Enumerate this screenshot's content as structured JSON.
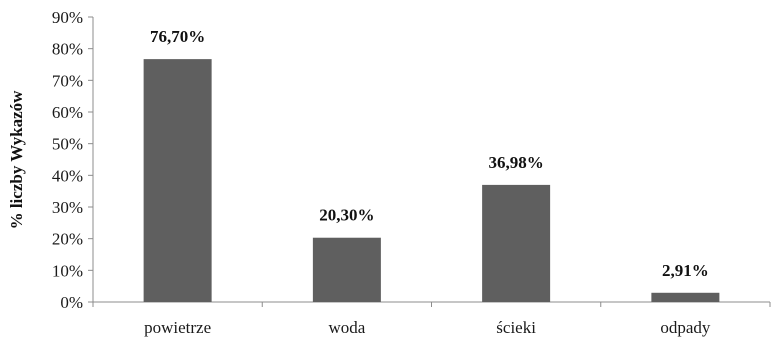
{
  "chart_data": {
    "type": "bar",
    "categories": [
      "powietrze",
      "woda",
      "ścieki",
      "odpady"
    ],
    "values": [
      76.7,
      20.3,
      36.98,
      2.91
    ],
    "data_labels": [
      "76,70%",
      "20,30%",
      "36,98%",
      "2,91%"
    ],
    "title": "",
    "xlabel": "",
    "ylabel": "% liczby Wykazów",
    "ylim": [
      0,
      90
    ],
    "yticks": [
      0,
      10,
      20,
      30,
      40,
      50,
      60,
      70,
      80,
      90
    ],
    "ytick_labels": [
      "0%",
      "10%",
      "20%",
      "30%",
      "40%",
      "50%",
      "60%",
      "70%",
      "80%",
      "90%"
    ],
    "grid": false,
    "legend": "none",
    "bar_color": "#5f5f5f",
    "axis_color": "#8c8c8c"
  }
}
